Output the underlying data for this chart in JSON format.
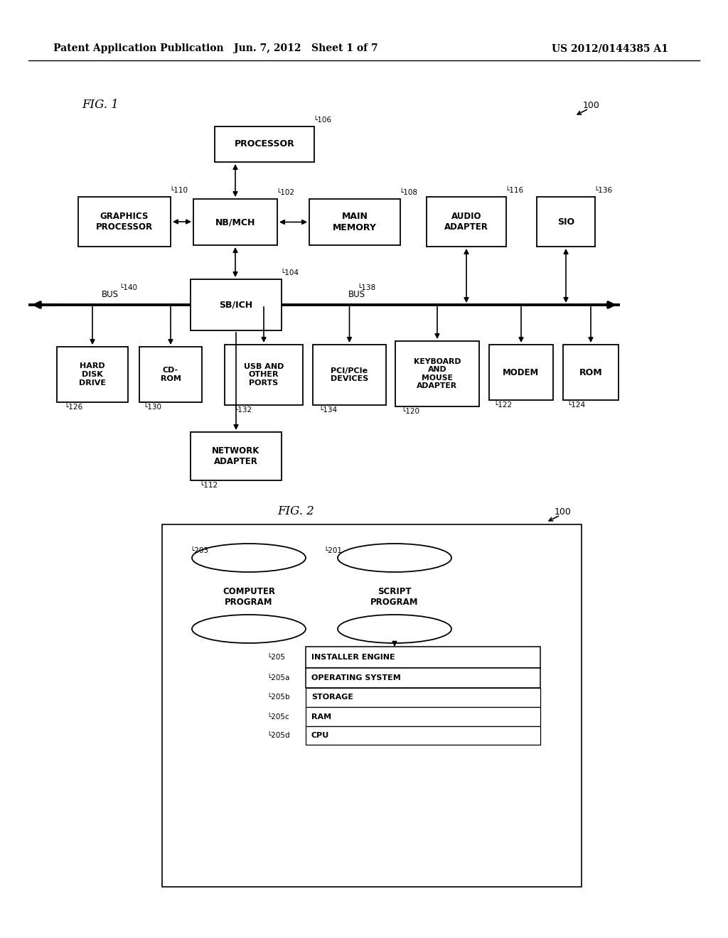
{
  "title_left": "Patent Application Publication",
  "title_center": "Jun. 7, 2012   Sheet 1 of 7",
  "title_right": "US 2012/0144385 A1",
  "bg_color": "#ffffff"
}
